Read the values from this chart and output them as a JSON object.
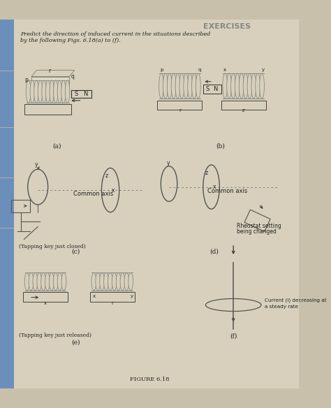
{
  "title_partial": "EXERCISES",
  "subtitle_line1": "Predict the direction of induced current in the situations described",
  "subtitle_line2": "by the following Figs. 6.18(a) to (f).",
  "figure_caption": "FIGURE 6.18",
  "bg_color": "#c8c0aa",
  "page_color": "#d8d0bc",
  "blue_strip_color": "#6b8fba",
  "label_a": "(a)",
  "label_b": "(b)",
  "label_c": "(c)",
  "label_d": "(d)",
  "label_e": "(e)",
  "label_f": "(f)",
  "common_axis_text": "Common axis",
  "tapping_key_closed": "(Tapping key just closed)",
  "tapping_key_released": "(Tapping key just released)",
  "rheostat_text1": "Rheostat setting",
  "rheostat_text2": "being changed",
  "current_text1": "Current (i) decreasing at",
  "current_text2": "a steady rate",
  "coil_color": "#888880",
  "line_color": "#555550",
  "text_color": "#222222"
}
